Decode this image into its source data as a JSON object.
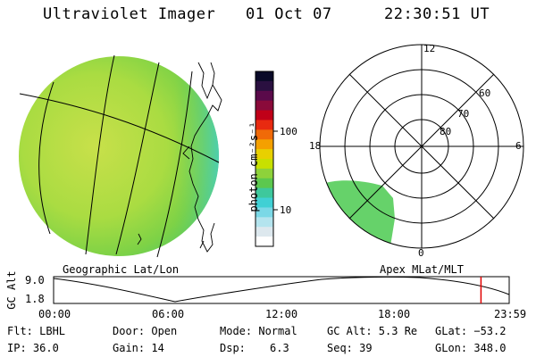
{
  "header": {
    "title": "Ultraviolet Imager",
    "date": "01 Oct 07",
    "time": "22:30:51 UT"
  },
  "colorbar": {
    "unit_label": "photon cm⁻²s⁻¹",
    "ticks": [
      "100",
      "10"
    ],
    "colors": [
      "#0a0a28",
      "#2a1040",
      "#5a0a4a",
      "#8a0a3a",
      "#c00018",
      "#e82a10",
      "#f06a08",
      "#f4a000",
      "#e8d000",
      "#c8e000",
      "#8ed23a",
      "#5cc84e",
      "#3ec89c",
      "#40d0d4",
      "#7ad8e6",
      "#b4e4ee",
      "#dde8ee",
      "#ffffff"
    ]
  },
  "left_panel": {
    "caption": "Geographic Lat/Lon"
  },
  "polar_panel": {
    "caption": "Apex MLat/MLT",
    "mlt_labels": {
      "top": "12",
      "left": "18",
      "right": "6",
      "bottom": "0"
    },
    "lat_labels": [
      "60",
      "70",
      "80"
    ]
  },
  "timeline": {
    "ylabel": "GC Alt",
    "ymax": "9.0",
    "ymin": "1.8",
    "xticks": [
      "00:00",
      "06:00",
      "12:00",
      "18:00",
      "23:59"
    ],
    "current_time_hours": 22.514
  },
  "info": {
    "flt": "Flt: LBHL",
    "ip": "IP: 36.0",
    "door": "Door: Open",
    "gain": "Gain: 14",
    "mode": "Mode: Normal",
    "dsp_label": "Dsp:",
    "dsp_value": "6.3",
    "gcalt": "GC Alt: 5.3 Re",
    "seq": "Seq: 39",
    "glat": "GLat: −53.2",
    "glon": "GLon: 348.0"
  }
}
